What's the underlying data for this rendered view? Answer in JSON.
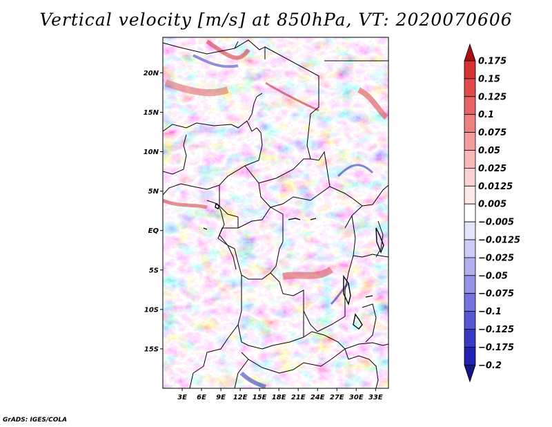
{
  "title": "Vertical velocity [m/s] at 850hPa, VT: 2020070606",
  "credit": "GrADS: IGES/COLA",
  "map": {
    "lat_range": [
      -20,
      24.5
    ],
    "lon_range": [
      0,
      35
    ],
    "lat_ticks": [
      {
        "value": 20,
        "label": "20N"
      },
      {
        "value": 15,
        "label": "15N"
      },
      {
        "value": 10,
        "label": "10N"
      },
      {
        "value": 5,
        "label": "5N"
      },
      {
        "value": 0,
        "label": "EQ"
      },
      {
        "value": -5,
        "label": "5S"
      },
      {
        "value": -10,
        "label": "10S"
      },
      {
        "value": -15,
        "label": "15S"
      }
    ],
    "lon_ticks": [
      {
        "value": 3,
        "label": "3E"
      },
      {
        "value": 6,
        "label": "6E"
      },
      {
        "value": 9,
        "label": "9E"
      },
      {
        "value": 12,
        "label": "12E"
      },
      {
        "value": 15,
        "label": "15E"
      },
      {
        "value": 18,
        "label": "18E"
      },
      {
        "value": 21,
        "label": "21E"
      },
      {
        "value": 24,
        "label": "24E"
      },
      {
        "value": 27,
        "label": "27E"
      },
      {
        "value": 30,
        "label": "30E"
      },
      {
        "value": 33,
        "label": "33E"
      }
    ]
  },
  "colorbar": {
    "levels": [
      {
        "label": "0.175",
        "color": "#c81e1e"
      },
      {
        "label": "0.15",
        "color": "#d63232"
      },
      {
        "label": "0.125",
        "color": "#e04a4a"
      },
      {
        "label": "0.1",
        "color": "#e86464"
      },
      {
        "label": "0.075",
        "color": "#ee8080"
      },
      {
        "label": "0.05",
        "color": "#f49c9c"
      },
      {
        "label": "0.025",
        "color": "#f8b8b8"
      },
      {
        "label": "0.0125",
        "color": "#fbd2d2"
      },
      {
        "label": "0.005",
        "color": "#fde8e8"
      },
      {
        "label": "−0.005",
        "color": "#ffffff"
      },
      {
        "label": "−0.0125",
        "color": "#e4e4fb"
      },
      {
        "label": "−0.025",
        "color": "#ccccf6"
      },
      {
        "label": "−0.05",
        "color": "#b0b0f0"
      },
      {
        "label": "−0.075",
        "color": "#9494e8"
      },
      {
        "label": "−0.1",
        "color": "#7474de"
      },
      {
        "label": "−0.125",
        "color": "#5656d2"
      },
      {
        "label": "−0.175",
        "color": "#3838c4"
      },
      {
        "label": "−0.2",
        "color": "#2222b4"
      }
    ],
    "top_arrow_color": "#a81010",
    "bottom_arrow_color": "#14148c"
  }
}
